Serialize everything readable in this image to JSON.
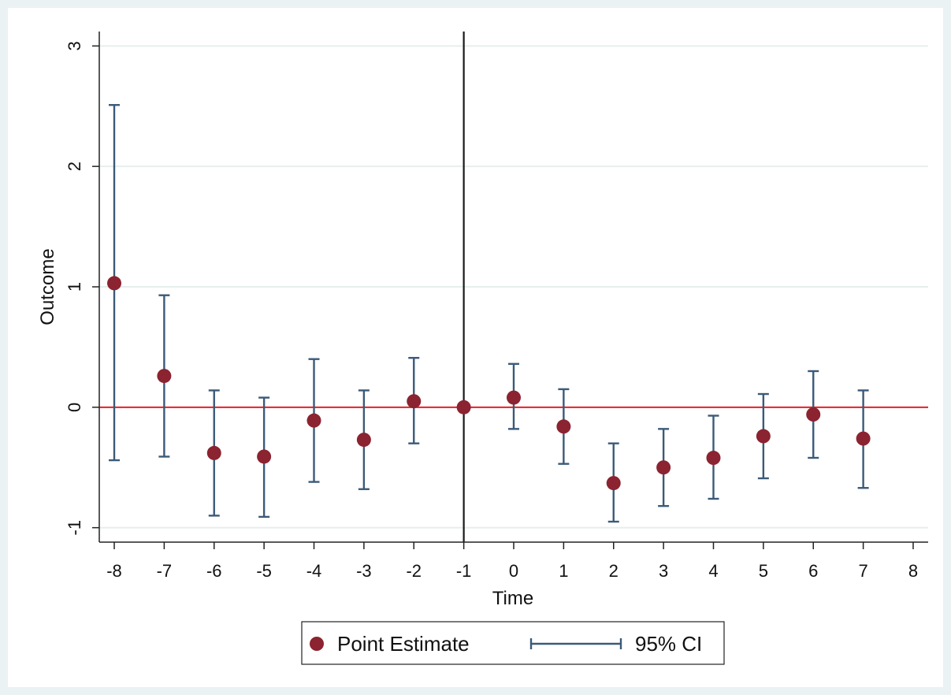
{
  "chart_data": {
    "type": "scatter",
    "xlabel": "Time",
    "ylabel": "Outcome",
    "xlim": [
      -8.3,
      8.3
    ],
    "ylim": [
      -1.12,
      3.12
    ],
    "xticks": [
      -8,
      -7,
      -6,
      -5,
      -4,
      -3,
      -2,
      -1,
      0,
      1,
      2,
      3,
      4,
      5,
      6,
      7,
      8
    ],
    "yticks": [
      -1,
      0,
      1,
      2,
      3
    ],
    "grid": "horizontal",
    "reference_lines": {
      "vertical_x": -1,
      "horizontal_y": 0
    },
    "series": [
      {
        "name": "Point Estimate",
        "x": [
          -8,
          -7,
          -6,
          -5,
          -4,
          -3,
          -2,
          -1,
          0,
          1,
          2,
          3,
          4,
          5,
          6,
          7
        ],
        "values": [
          1.03,
          0.26,
          -0.38,
          -0.41,
          -0.11,
          -0.27,
          0.05,
          0.0,
          0.08,
          -0.16,
          -0.63,
          -0.5,
          -0.42,
          -0.24,
          -0.06,
          -0.26
        ]
      },
      {
        "name": "95% CI",
        "x": [
          -8,
          -7,
          -6,
          -5,
          -4,
          -3,
          -2,
          0,
          1,
          2,
          3,
          4,
          5,
          6,
          7
        ],
        "lower": [
          -0.44,
          -0.41,
          -0.9,
          -0.91,
          -0.62,
          -0.68,
          -0.3,
          -0.18,
          -0.47,
          -0.95,
          -0.82,
          -0.76,
          -0.59,
          -0.42,
          -0.67
        ],
        "upper": [
          2.51,
          0.93,
          0.14,
          0.08,
          0.4,
          0.14,
          0.41,
          0.36,
          0.15,
          -0.3,
          -0.18,
          -0.07,
          0.11,
          0.3,
          0.14
        ]
      }
    ],
    "legend": {
      "position": "bottom",
      "point_label": "Point Estimate",
      "ci_label": "95% CI"
    },
    "colors": {
      "point": "#8b2330",
      "ci": "#3b5a78",
      "zero_line": "#e8202a",
      "vertical_line": "#1a1a1a",
      "grid": "#e6eeee",
      "background": "#eaf2f3",
      "plot_background": "#ffffff"
    }
  }
}
